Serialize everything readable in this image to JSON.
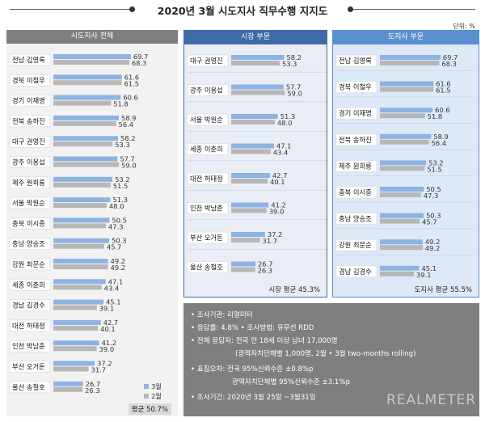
{
  "title": "2020년 3월 시도지사 직무수행 지지도",
  "unit": "단위: %",
  "legend": {
    "march": "3월",
    "feb": "2월"
  },
  "colors": {
    "march": "#8db3e2",
    "feb": "#b7b7b7",
    "panel1_head": "#7f7f7f",
    "panel2_head": "#3e6aa8",
    "panel3_head": "#5a8fd0",
    "panel2_bg": "#e9eef6",
    "panel3_bg": "#dde9f6"
  },
  "panels": {
    "all": {
      "header": "시도지사 전체",
      "average": "평균 50.7%"
    },
    "mayor": {
      "header": "시장 부문",
      "average": "시장 평균 45.3%"
    },
    "governor": {
      "header": "도지사 부문",
      "average": "도지사 평균 55.5%"
    }
  },
  "info": {
    "l1": "• 조사기관: 리얼미터",
    "l2": "• 응답률: 4.8% • 조사방법: 유무선 RDD",
    "l3": "• 전체 응답자: 전국 만 18세 이상 남녀 17,000명",
    "l4": "(광역자치단체별 1,000명, 2월 • 3월 two-months rolling)",
    "l5": "• 표집오차: 전국 95%신뢰수준 ±0.8%p",
    "l6": "광역자치단체별 95%신뢰수준 ±3.1%p",
    "l7": "• 조사기간: 2020년 3월 25일 ~3월31일"
  },
  "logo": "REALMETER",
  "chart_data": [
    {
      "type": "bar",
      "title": "시도지사 전체",
      "categories": [
        "전남 김영록",
        "경북 이철우",
        "경기 이재명",
        "전북 송하진",
        "대구 권영진",
        "광주 이용섭",
        "제주 원희룡",
        "서울 박원순",
        "충북 이시종",
        "충남 양승조",
        "강원 최문순",
        "세종 이춘희",
        "경남 김경수",
        "대전 허태정",
        "인천 박남춘",
        "부산 오거돈",
        "울산 송철호"
      ],
      "series": [
        {
          "name": "3월",
          "values": [
            69.7,
            61.6,
            60.6,
            58.9,
            58.2,
            57.7,
            53.2,
            51.3,
            50.5,
            50.3,
            49.2,
            47.1,
            45.1,
            42.7,
            41.2,
            37.2,
            26.7
          ]
        },
        {
          "name": "2월",
          "values": [
            68.3,
            61.5,
            51.8,
            56.4,
            53.3,
            59.0,
            51.5,
            48.0,
            47.3,
            45.7,
            49.2,
            43.4,
            39.1,
            40.1,
            39.0,
            31.7,
            26.3
          ]
        }
      ],
      "average": 50.7
    },
    {
      "type": "bar",
      "title": "시장 부문",
      "categories": [
        "대구 권영진",
        "광주 이용섭",
        "서울 박원순",
        "세종 이춘희",
        "대전 허태정",
        "인천 박남춘",
        "부산 오거돈",
        "울산 송철호"
      ],
      "series": [
        {
          "name": "3월",
          "values": [
            58.2,
            57.7,
            51.3,
            47.1,
            42.7,
            41.2,
            37.2,
            26.7
          ]
        },
        {
          "name": "2월",
          "values": [
            53.3,
            59.0,
            48.0,
            43.4,
            40.1,
            39.0,
            31.7,
            26.3
          ]
        }
      ],
      "average": 45.3
    },
    {
      "type": "bar",
      "title": "도지사 부문",
      "categories": [
        "전남 김영록",
        "경북 이철우",
        "경기 이재명",
        "전북 송하진",
        "제주 원희룡",
        "충북 이시종",
        "충남 양승조",
        "강원 최문순",
        "경남 김경수"
      ],
      "series": [
        {
          "name": "3월",
          "values": [
            69.7,
            61.6,
            60.6,
            58.9,
            53.2,
            50.5,
            50.3,
            49.2,
            45.1
          ]
        },
        {
          "name": "2월",
          "values": [
            68.3,
            61.5,
            51.8,
            56.4,
            51.5,
            47.3,
            45.7,
            49.2,
            39.1
          ]
        }
      ],
      "average": 55.5
    }
  ]
}
